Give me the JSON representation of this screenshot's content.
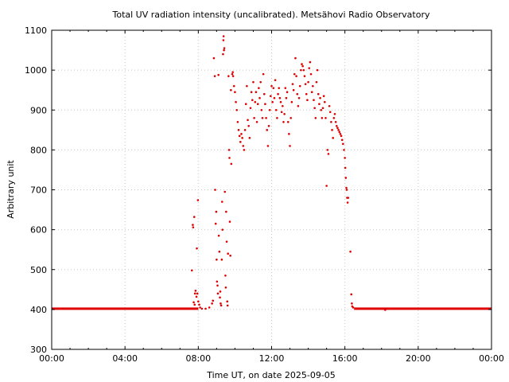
{
  "chart_data": {
    "type": "scatter",
    "title": "Total UV radiation intensity (uncalibrated). Metsähovi Radio Observatory",
    "xlabel": "Time UT, on date 2025-09-05",
    "ylabel": "Arbitrary unit",
    "xlim": [
      0,
      24
    ],
    "ylim": [
      300,
      1100
    ],
    "x_ticks": [
      {
        "value": 0,
        "label": "00:00"
      },
      {
        "value": 4,
        "label": "04:00"
      },
      {
        "value": 8,
        "label": "08:00"
      },
      {
        "value": 12,
        "label": "12:00"
      },
      {
        "value": 16,
        "label": "16:00"
      },
      {
        "value": 20,
        "label": "20:00"
      },
      {
        "value": 24,
        "label": "00:00"
      }
    ],
    "y_ticks": [
      300,
      400,
      500,
      600,
      700,
      800,
      900,
      1000,
      1100
    ],
    "grid": true,
    "point_color": "#e00000",
    "series": [
      {
        "baseline": {
          "value": 402,
          "x_ranges": [
            [
              0,
              8.0
            ],
            [
              16.5,
              24
            ]
          ]
        },
        "points": [
          [
            7.65,
            498
          ],
          [
            7.7,
            612
          ],
          [
            7.72,
            606
          ],
          [
            7.78,
            632
          ],
          [
            7.75,
            418
          ],
          [
            7.8,
            412
          ],
          [
            7.82,
            440
          ],
          [
            7.85,
            447
          ],
          [
            7.9,
            432
          ],
          [
            7.92,
            553
          ],
          [
            7.95,
            440
          ],
          [
            7.98,
            674
          ],
          [
            8.0,
            420
          ],
          [
            8.05,
            412
          ],
          [
            8.1,
            405
          ],
          [
            8.2,
            402
          ],
          [
            8.4,
            402
          ],
          [
            8.6,
            405
          ],
          [
            8.75,
            415
          ],
          [
            8.8,
            422
          ],
          [
            8.85,
            1030
          ],
          [
            8.9,
            985
          ],
          [
            8.92,
            700
          ],
          [
            8.95,
            615
          ],
          [
            8.98,
            645
          ],
          [
            9.0,
            525
          ],
          [
            9.02,
            470
          ],
          [
            9.05,
            460
          ],
          [
            9.07,
            440
          ],
          [
            9.1,
            988
          ],
          [
            9.12,
            585
          ],
          [
            9.15,
            545
          ],
          [
            9.18,
            430
          ],
          [
            9.2,
            445
          ],
          [
            9.22,
            415
          ],
          [
            9.25,
            410
          ],
          [
            9.28,
            525
          ],
          [
            9.3,
            670
          ],
          [
            9.32,
            600
          ],
          [
            9.35,
            1040
          ],
          [
            9.37,
            1075
          ],
          [
            9.38,
            1085
          ],
          [
            9.4,
            1050
          ],
          [
            9.42,
            1055
          ],
          [
            9.45,
            695
          ],
          [
            9.48,
            485
          ],
          [
            9.5,
            455
          ],
          [
            9.52,
            645
          ],
          [
            9.55,
            570
          ],
          [
            9.58,
            420
          ],
          [
            9.6,
            410
          ],
          [
            9.62,
            540
          ],
          [
            9.65,
            985
          ],
          [
            9.68,
            800
          ],
          [
            9.7,
            780
          ],
          [
            9.72,
            620
          ],
          [
            9.75,
            535
          ],
          [
            9.78,
            950
          ],
          [
            9.8,
            765
          ],
          [
            9.85,
            990
          ],
          [
            9.88,
            995
          ],
          [
            9.9,
            985
          ],
          [
            9.95,
            960
          ],
          [
            10.0,
            945
          ],
          [
            10.05,
            920
          ],
          [
            10.1,
            900
          ],
          [
            10.15,
            870
          ],
          [
            10.2,
            850
          ],
          [
            10.25,
            835
          ],
          [
            10.3,
            820
          ],
          [
            10.35,
            840
          ],
          [
            10.4,
            830
          ],
          [
            10.45,
            810
          ],
          [
            10.5,
            800
          ],
          [
            10.55,
            850
          ],
          [
            10.6,
            915
          ],
          [
            10.65,
            960
          ],
          [
            10.7,
            875
          ],
          [
            10.75,
            860
          ],
          [
            10.8,
            830
          ],
          [
            10.85,
            905
          ],
          [
            10.9,
            945
          ],
          [
            10.95,
            925
          ],
          [
            11.0,
            970
          ],
          [
            11.05,
            880
          ],
          [
            11.1,
            920
          ],
          [
            11.15,
            945
          ],
          [
            11.2,
            870
          ],
          [
            11.25,
            915
          ],
          [
            11.3,
            955
          ],
          [
            11.35,
            930
          ],
          [
            11.4,
            970
          ],
          [
            11.45,
            900
          ],
          [
            11.5,
            880
          ],
          [
            11.55,
            990
          ],
          [
            11.6,
            940
          ],
          [
            11.65,
            915
          ],
          [
            11.7,
            880
          ],
          [
            11.75,
            850
          ],
          [
            11.8,
            810
          ],
          [
            11.85,
            860
          ],
          [
            11.9,
            900
          ],
          [
            11.95,
            935
          ],
          [
            12.0,
            960
          ],
          [
            12.05,
            920
          ],
          [
            12.1,
            955
          ],
          [
            12.15,
            930
          ],
          [
            12.2,
            975
          ],
          [
            12.25,
            900
          ],
          [
            12.3,
            880
          ],
          [
            12.35,
            940
          ],
          [
            12.4,
            955
          ],
          [
            12.45,
            930
          ],
          [
            12.5,
            920
          ],
          [
            12.55,
            895
          ],
          [
            12.6,
            910
          ],
          [
            12.65,
            870
          ],
          [
            12.7,
            890
          ],
          [
            12.75,
            955
          ],
          [
            12.8,
            930
          ],
          [
            12.85,
            945
          ],
          [
            12.9,
            870
          ],
          [
            12.95,
            840
          ],
          [
            13.0,
            810
          ],
          [
            13.05,
            880
          ],
          [
            13.1,
            920
          ],
          [
            13.15,
            965
          ],
          [
            13.2,
            950
          ],
          [
            13.25,
            990
          ],
          [
            13.3,
            1030
          ],
          [
            13.35,
            985
          ],
          [
            13.4,
            940
          ],
          [
            13.45,
            910
          ],
          [
            13.5,
            930
          ],
          [
            13.55,
            960
          ],
          [
            13.6,
            1000
          ],
          [
            13.65,
            1015
          ],
          [
            13.7,
            1010
          ],
          [
            13.75,
            1000
          ],
          [
            13.8,
            985
          ],
          [
            13.85,
            965
          ],
          [
            13.9,
            940
          ],
          [
            13.95,
            925
          ],
          [
            14.0,
            970
          ],
          [
            14.05,
            1005
          ],
          [
            14.1,
            1020
          ],
          [
            14.15,
            990
          ],
          [
            14.2,
            945
          ],
          [
            14.25,
            960
          ],
          [
            14.3,
            925
          ],
          [
            14.35,
            905
          ],
          [
            14.4,
            880
          ],
          [
            14.45,
            970
          ],
          [
            14.5,
            1000
          ],
          [
            14.55,
            940
          ],
          [
            14.6,
            915
          ],
          [
            14.65,
            930
          ],
          [
            14.7,
            900
          ],
          [
            14.75,
            880
          ],
          [
            14.8,
            905
          ],
          [
            14.85,
            935
          ],
          [
            14.9,
            920
          ],
          [
            14.95,
            880
          ],
          [
            15.0,
            710
          ],
          [
            15.05,
            800
          ],
          [
            15.1,
            790
          ],
          [
            15.15,
            910
          ],
          [
            15.2,
            895
          ],
          [
            15.25,
            870
          ],
          [
            15.3,
            850
          ],
          [
            15.35,
            830
          ],
          [
            15.4,
            880
          ],
          [
            15.45,
            890
          ],
          [
            15.5,
            870
          ],
          [
            15.55,
            860
          ],
          [
            15.6,
            855
          ],
          [
            15.65,
            850
          ],
          [
            15.7,
            845
          ],
          [
            15.75,
            840
          ],
          [
            15.8,
            835
          ],
          [
            15.85,
            825
          ],
          [
            15.9,
            815
          ],
          [
            15.95,
            800
          ],
          [
            16.0,
            780
          ],
          [
            16.02,
            755
          ],
          [
            16.05,
            730
          ],
          [
            16.08,
            705
          ],
          [
            16.1,
            700
          ],
          [
            16.12,
            680
          ],
          [
            16.15,
            668
          ],
          [
            16.18,
            680
          ],
          [
            16.3,
            545
          ],
          [
            16.35,
            438
          ],
          [
            16.38,
            415
          ],
          [
            16.4,
            408
          ],
          [
            16.45,
            405
          ],
          [
            18.2,
            399
          ]
        ]
      }
    ]
  }
}
